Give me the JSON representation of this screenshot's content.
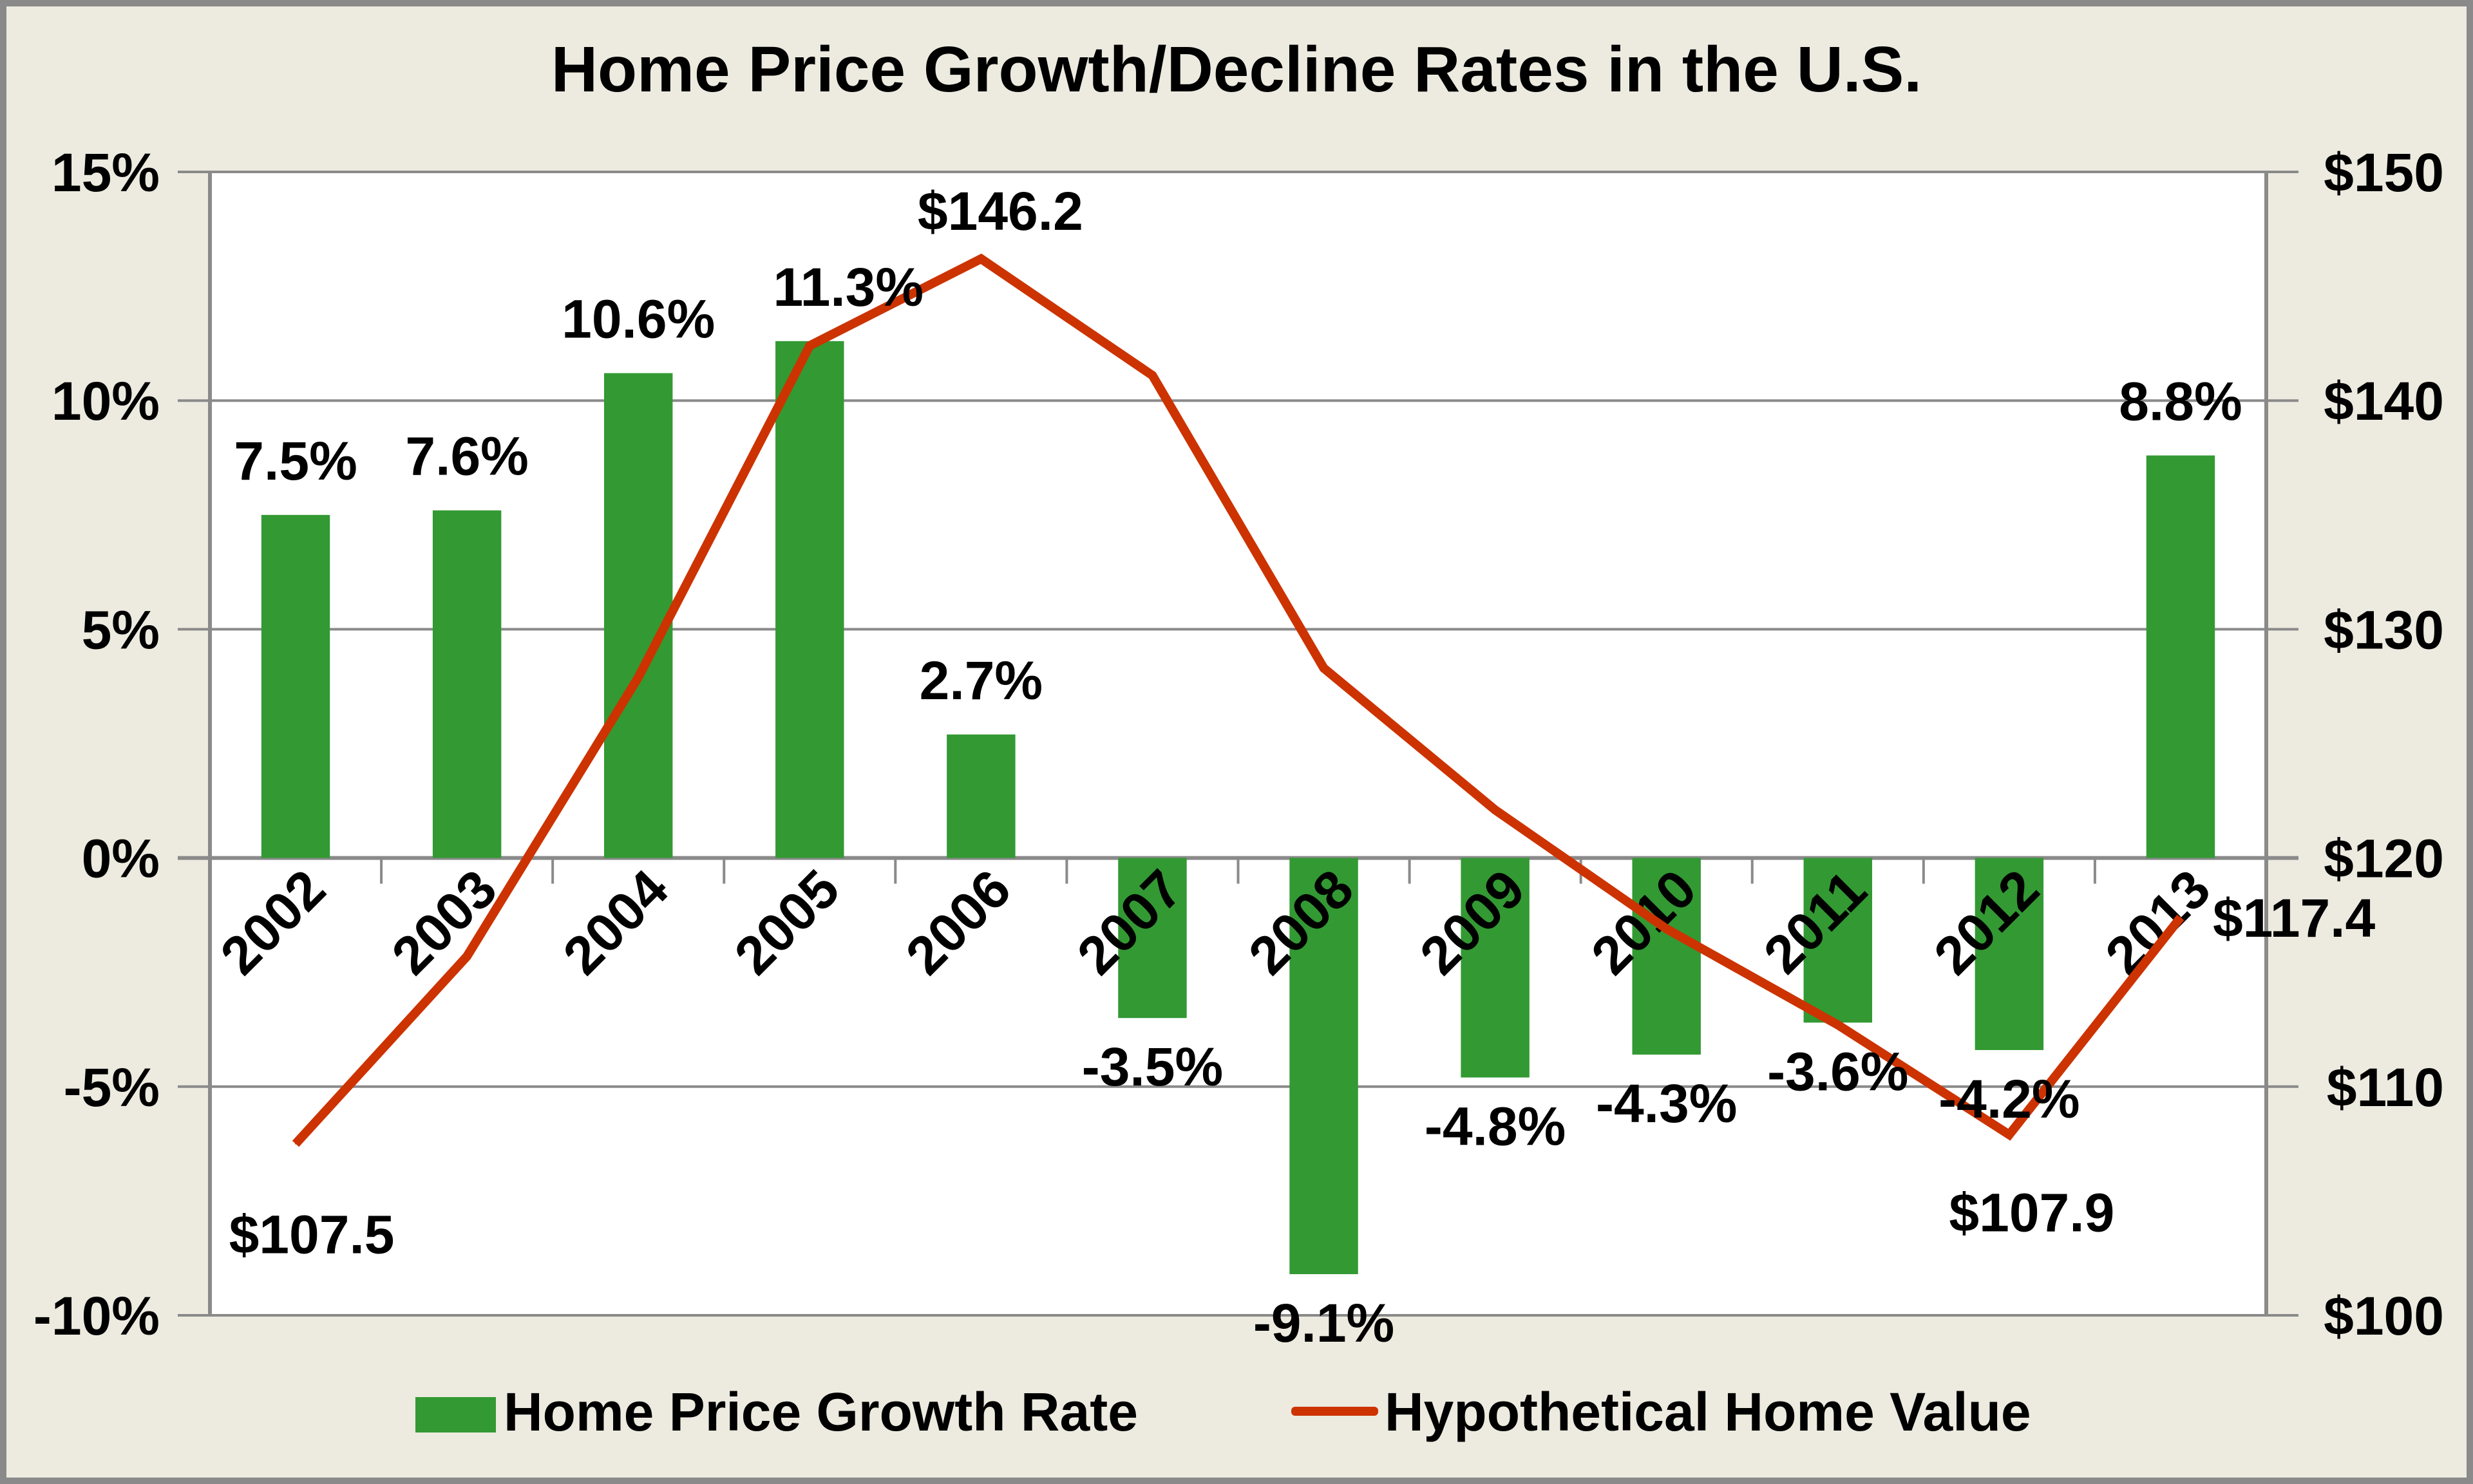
{
  "chart_data": {
    "type": "bar+line",
    "title": "Home Price Growth/Decline Rates in the U.S.",
    "categories": [
      "2002",
      "2003",
      "2004",
      "2005",
      "2006",
      "2007",
      "2008",
      "2009",
      "2010",
      "2011",
      "2012",
      "2013"
    ],
    "series": [
      {
        "name": "Home Price Growth Rate",
        "type": "bar",
        "axis": "left",
        "color": "#339933",
        "values": [
          7.5,
          7.6,
          10.6,
          11.3,
          2.7,
          -3.5,
          -9.1,
          -4.8,
          -4.3,
          -3.6,
          -4.2,
          8.8
        ],
        "labels": [
          "7.5%",
          "7.6%",
          "10.6%",
          "11.3%",
          "2.7%",
          "-3.5%",
          "-9.1%",
          "-4.8%",
          "-4.3%",
          "-3.6%",
          "-4.2%",
          "8.8%"
        ]
      },
      {
        "name": "Hypothetical Home Value",
        "type": "line",
        "axis": "right",
        "color": "#cc3300",
        "values": [
          107.5,
          115.7,
          127.9,
          142.4,
          146.2,
          141.1,
          128.3,
          122.1,
          116.9,
          112.7,
          107.9,
          117.4
        ],
        "labeled_points": [
          {
            "index": 0,
            "label": "$107.5"
          },
          {
            "index": 4,
            "label": "$146.2"
          },
          {
            "index": 10,
            "label": "$107.9"
          },
          {
            "index": 11,
            "label": "$117.4"
          }
        ]
      }
    ],
    "left_axis": {
      "ylim": [
        -10,
        15
      ],
      "ticks": [
        15,
        10,
        5,
        0,
        -5,
        -10
      ],
      "tick_labels": [
        "15%",
        "10%",
        "5%",
        "0%",
        "-5%",
        "-10%"
      ]
    },
    "right_axis": {
      "ylim": [
        100,
        150
      ],
      "ticks": [
        150,
        140,
        130,
        120,
        110,
        100
      ],
      "tick_labels": [
        "$150",
        "$140",
        "$130",
        "$120",
        "$110",
        "$100"
      ]
    },
    "xlabel": "",
    "ylabel": "",
    "grid": true,
    "legend": {
      "placement": "bottom",
      "entries": [
        "Home Price Growth Rate",
        "Hypothetical Home Value"
      ]
    },
    "colors": {
      "background": "#edebe0",
      "plot_background": "#ffffff",
      "gridline": "#8a8a8a",
      "bar": "#339933",
      "line": "#cc3300"
    }
  }
}
